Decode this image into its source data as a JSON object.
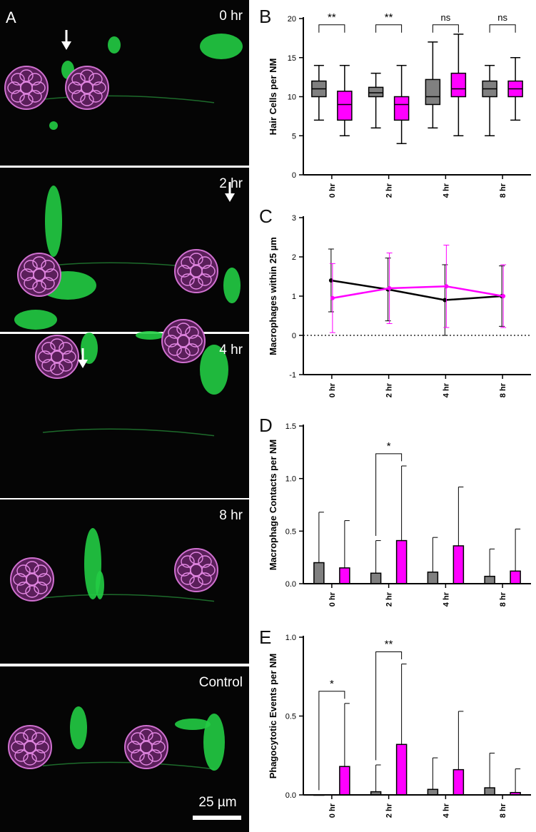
{
  "panel_letters": {
    "a": "A",
    "b": "B",
    "c": "C",
    "d": "D",
    "e": "E"
  },
  "micrographs": [
    {
      "label": "0 hr",
      "arrow": true
    },
    {
      "label": "2 hr",
      "arrow": true
    },
    {
      "label": "4 hr",
      "arrow": true
    },
    {
      "label": "8 hr",
      "arrow": false
    },
    {
      "label": "Control",
      "arrow": false
    }
  ],
  "scale_bar": "25 µm",
  "colors": {
    "group1": "#808080",
    "group2": "#ff00ff",
    "hair_cells": "#c040c0",
    "macrophages": "#22cc44",
    "background": "#050505"
  },
  "chart_data": [
    {
      "panel": "B",
      "type": "box",
      "ylabel": "Hair Cells per NM",
      "categories": [
        "0 hr",
        "2 hr",
        "4 hr",
        "8 hr"
      ],
      "ylim": [
        0,
        20
      ],
      "yticks": [
        0,
        5,
        10,
        15,
        20
      ],
      "series": [
        {
          "color": "#808080",
          "boxes": [
            {
              "min": 7,
              "q1": 10,
              "median": 11,
              "q3": 12,
              "max": 14
            },
            {
              "min": 6,
              "q1": 10,
              "median": 10.5,
              "q3": 11.2,
              "max": 13
            },
            {
              "min": 6,
              "q1": 9,
              "median": 10,
              "q3": 12.2,
              "max": 17
            },
            {
              "min": 5,
              "q1": 10,
              "median": 11,
              "q3": 12,
              "max": 14
            }
          ]
        },
        {
          "color": "#ff00ff",
          "boxes": [
            {
              "min": 5,
              "q1": 7,
              "median": 9,
              "q3": 10.7,
              "max": 14
            },
            {
              "min": 4,
              "q1": 7,
              "median": 9,
              "q3": 10,
              "max": 14
            },
            {
              "min": 5,
              "q1": 10,
              "median": 11,
              "q3": 13,
              "max": 18
            },
            {
              "min": 7,
              "q1": 10,
              "median": 11,
              "q3": 12,
              "max": 15
            }
          ]
        }
      ],
      "significance": [
        "**",
        "**",
        "ns",
        "ns"
      ]
    },
    {
      "panel": "C",
      "type": "line",
      "ylabel": "Macrophages within 25 µm",
      "categories": [
        "0 hr",
        "2 hr",
        "4 hr",
        "8 hr"
      ],
      "ylim": [
        -1,
        3
      ],
      "yticks": [
        -1,
        0,
        1,
        2,
        3
      ],
      "series": [
        {
          "color": "#000000",
          "values": [
            1.4,
            1.17,
            0.9,
            1.0
          ],
          "err": [
            0.8,
            0.8,
            0.9,
            0.77
          ]
        },
        {
          "color": "#ff00ff",
          "values": [
            0.95,
            1.2,
            1.25,
            1.0
          ],
          "err": [
            0.88,
            0.9,
            1.05,
            0.8
          ]
        }
      ],
      "zero_line": true
    },
    {
      "panel": "D",
      "type": "bar",
      "ylabel": "Macrophage Contacts per NM",
      "categories": [
        "0 hr",
        "2 hr",
        "4 hr",
        "8 hr"
      ],
      "ylim": [
        0,
        1.5
      ],
      "yticks": [
        0.0,
        0.5,
        1.0,
        1.5
      ],
      "ytick_labels": [
        "0.0",
        "0.5",
        "1.0",
        "1.5"
      ],
      "series": [
        {
          "color": "#808080",
          "values": [
            0.2,
            0.1,
            0.11,
            0.07
          ],
          "err": [
            0.48,
            0.31,
            0.33,
            0.26
          ]
        },
        {
          "color": "#ff00ff",
          "values": [
            0.15,
            0.41,
            0.36,
            0.12
          ],
          "err": [
            0.45,
            0.71,
            0.56,
            0.4
          ]
        }
      ],
      "significance": [
        "",
        "*",
        "",
        ""
      ]
    },
    {
      "panel": "E",
      "type": "bar",
      "ylabel": "Phagocytotic Events per NM",
      "categories": [
        "0 hr",
        "2 hr",
        "4 hr",
        "8 hr"
      ],
      "ylim": [
        0,
        1.0
      ],
      "yticks": [
        0.0,
        0.5,
        1.0
      ],
      "ytick_labels": [
        "0.0",
        "0.5",
        "1.0"
      ],
      "series": [
        {
          "color": "#808080",
          "values": [
            0.0,
            0.02,
            0.035,
            0.045
          ],
          "err": [
            0.0,
            0.17,
            0.2,
            0.22
          ]
        },
        {
          "color": "#ff00ff",
          "values": [
            0.18,
            0.32,
            0.16,
            0.015
          ],
          "err": [
            0.4,
            0.51,
            0.37,
            0.15
          ]
        }
      ],
      "significance": [
        "*",
        "**",
        "",
        ""
      ]
    }
  ]
}
